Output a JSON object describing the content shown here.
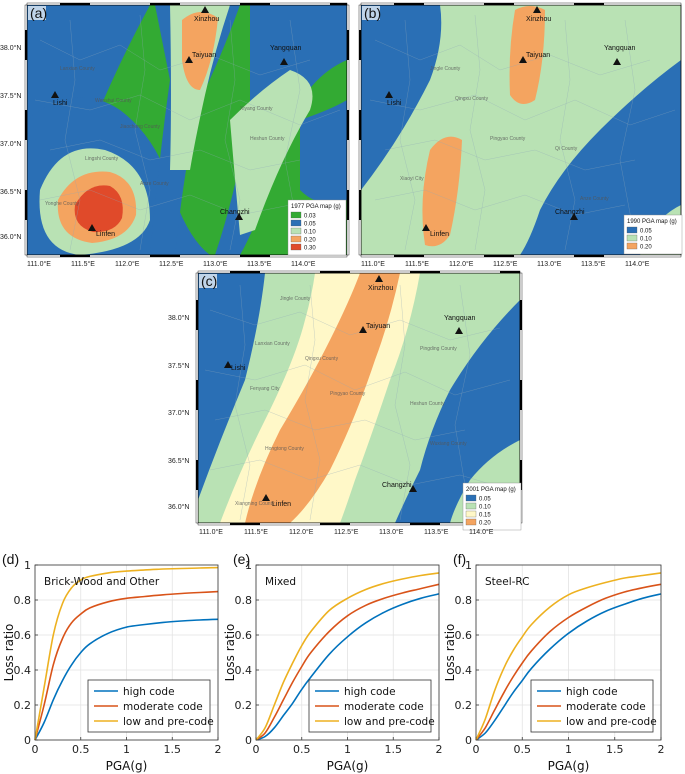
{
  "maps": [
    {
      "panel_label": "(a)",
      "legend_title": "1977 PGA map (g)",
      "legend_items": [
        {
          "label": "0.03",
          "color": "#33aa33"
        },
        {
          "label": "0.05",
          "color": "#2a6fb5"
        },
        {
          "label": "0.10",
          "color": "#b9e2b4"
        },
        {
          "label": "0.20",
          "color": "#f4a460"
        },
        {
          "label": "0.30",
          "color": "#e04a2a"
        }
      ]
    },
    {
      "panel_label": "(b)",
      "legend_title": "1990 PGA map (g)",
      "legend_items": [
        {
          "label": "0.05",
          "color": "#2a6fb5"
        },
        {
          "label": "0.10",
          "color": "#b9e2b4"
        },
        {
          "label": "0.20",
          "color": "#f4a460"
        }
      ]
    },
    {
      "panel_label": "(c)",
      "legend_title": "2001 PGA map (g)",
      "legend_items": [
        {
          "label": "0.05",
          "color": "#2a6fb5"
        },
        {
          "label": "0.10",
          "color": "#b9e2b4"
        },
        {
          "label": "0.15",
          "color": "#fff8c8"
        },
        {
          "label": "0.20",
          "color": "#f4a460"
        }
      ]
    }
  ],
  "map_common": {
    "lon_ticks": [
      "111.0°E",
      "111.5°E",
      "112.0°E",
      "112.5°E",
      "113.0°E",
      "113.5°E",
      "114.0°E"
    ],
    "lat_ticks": [
      "38.0°N",
      "37.5°N",
      "37.0°N",
      "36.5°N",
      "36.0°N"
    ],
    "cities": [
      "Xinzhou",
      "Taiyuan",
      "Yangquan",
      "Lishi",
      "Changzhi",
      "Linfen"
    ]
  },
  "chart_data": [
    {
      "type": "line",
      "panel_label": "(d)",
      "title": "Brick-Wood and Other",
      "xlabel": "PGA(g)",
      "ylabel": "Loss ratio",
      "xlim": [
        0,
        2
      ],
      "ylim": [
        0,
        1
      ],
      "xticks": [
        "0",
        "0.5",
        "1",
        "1.5",
        "2"
      ],
      "yticks": [
        "0",
        "0.2",
        "0.4",
        "0.6",
        "0.8",
        "1"
      ],
      "grid": true,
      "legend_position": "bottom-right",
      "x": [
        0,
        0.1,
        0.2,
        0.3,
        0.4,
        0.5,
        0.6,
        0.8,
        1.0,
        1.2,
        1.4,
        1.6,
        1.8,
        2.0
      ],
      "series": [
        {
          "name": "high code",
          "color": "#0072bd",
          "values": [
            0,
            0.1,
            0.23,
            0.34,
            0.43,
            0.5,
            0.55,
            0.61,
            0.645,
            0.66,
            0.672,
            0.68,
            0.686,
            0.69
          ]
        },
        {
          "name": "moderate code",
          "color": "#d95319",
          "values": [
            0,
            0.2,
            0.43,
            0.58,
            0.67,
            0.72,
            0.755,
            0.79,
            0.81,
            0.82,
            0.83,
            0.837,
            0.843,
            0.848
          ]
        },
        {
          "name": "low and pre-code",
          "color": "#edb120",
          "values": [
            0,
            0.3,
            0.6,
            0.78,
            0.87,
            0.915,
            0.935,
            0.955,
            0.965,
            0.972,
            0.977,
            0.98,
            0.983,
            0.985
          ]
        }
      ]
    },
    {
      "type": "line",
      "panel_label": "(e)",
      "title": "Mixed",
      "xlabel": "PGA(g)",
      "ylabel": "Loss ratio",
      "xlim": [
        0,
        2
      ],
      "ylim": [
        0,
        1
      ],
      "xticks": [
        "0",
        "0.5",
        "1",
        "1.5",
        "2"
      ],
      "yticks": [
        "0",
        "0.2",
        "0.4",
        "0.6",
        "0.8",
        "1"
      ],
      "grid": true,
      "legend_position": "bottom-right",
      "x": [
        0,
        0.1,
        0.2,
        0.3,
        0.4,
        0.5,
        0.6,
        0.8,
        1.0,
        1.2,
        1.4,
        1.6,
        1.8,
        2.0
      ],
      "series": [
        {
          "name": "high code",
          "color": "#0072bd",
          "values": [
            0,
            0.02,
            0.07,
            0.14,
            0.21,
            0.29,
            0.36,
            0.49,
            0.59,
            0.67,
            0.73,
            0.775,
            0.81,
            0.835
          ]
        },
        {
          "name": "moderate code",
          "color": "#d95319",
          "values": [
            0,
            0.04,
            0.13,
            0.23,
            0.33,
            0.42,
            0.5,
            0.62,
            0.71,
            0.77,
            0.81,
            0.84,
            0.865,
            0.89
          ]
        },
        {
          "name": "low and pre-code",
          "color": "#edb120",
          "values": [
            0,
            0.07,
            0.2,
            0.33,
            0.44,
            0.54,
            0.62,
            0.74,
            0.81,
            0.86,
            0.895,
            0.92,
            0.94,
            0.955
          ]
        }
      ]
    },
    {
      "type": "line",
      "panel_label": "(f)",
      "title": "Steel-RC",
      "xlabel": "PGA(g)",
      "ylabel": "Loss ratio",
      "xlim": [
        0,
        2
      ],
      "ylim": [
        0,
        1
      ],
      "xticks": [
        "0",
        "0.5",
        "1",
        "1.5",
        "2"
      ],
      "yticks": [
        "0",
        "0.2",
        "0.4",
        "0.6",
        "0.8",
        "1"
      ],
      "grid": true,
      "legend_position": "bottom-right",
      "x": [
        0,
        0.1,
        0.2,
        0.3,
        0.4,
        0.5,
        0.6,
        0.8,
        1.0,
        1.2,
        1.4,
        1.6,
        1.8,
        2.0
      ],
      "series": [
        {
          "name": "high code",
          "color": "#0072bd",
          "values": [
            0,
            0.04,
            0.11,
            0.19,
            0.27,
            0.34,
            0.41,
            0.52,
            0.61,
            0.68,
            0.735,
            0.775,
            0.81,
            0.835
          ]
        },
        {
          "name": "moderate code",
          "color": "#d95319",
          "values": [
            0,
            0.07,
            0.17,
            0.27,
            0.36,
            0.44,
            0.51,
            0.62,
            0.7,
            0.76,
            0.81,
            0.845,
            0.87,
            0.89
          ]
        },
        {
          "name": "low and pre-code",
          "color": "#edb120",
          "values": [
            0,
            0.12,
            0.28,
            0.41,
            0.51,
            0.59,
            0.66,
            0.76,
            0.83,
            0.87,
            0.9,
            0.925,
            0.94,
            0.955
          ]
        }
      ]
    }
  ]
}
